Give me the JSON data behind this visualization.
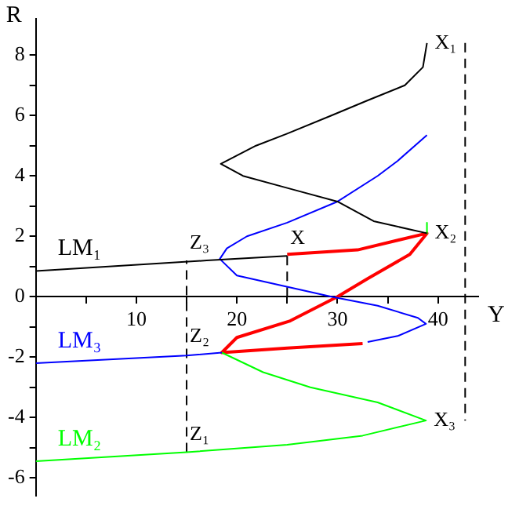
{
  "chart_data": {
    "type": "line",
    "xlabel": "Y",
    "ylabel": "R",
    "xlim": [
      0,
      44
    ],
    "ylim": [
      -6.6,
      9.2
    ],
    "xticks": [
      {
        "value": 5,
        "label": null
      },
      10,
      {
        "value": 15,
        "label": null
      },
      20,
      {
        "value": 25,
        "label": null
      },
      30,
      {
        "value": 35,
        "label": null
      },
      40
    ],
    "yticks": [
      -6,
      {
        "value": -5,
        "label": null
      },
      -4,
      {
        "value": -3,
        "label": null
      },
      -2,
      {
        "value": -1,
        "label": null
      },
      0,
      {
        "value": 1,
        "label": null
      },
      2,
      {
        "value": 3,
        "label": null
      },
      4,
      {
        "value": 5,
        "label": null
      },
      6,
      {
        "value": 7,
        "label": null
      },
      8
    ],
    "grid": false,
    "legend": false,
    "marker": "none",
    "series": [
      {
        "name": "LM₁",
        "color": "#000000",
        "x": [
          0,
          17,
          25,
          null,
          38.9,
          33.6,
          30,
          25,
          20.6,
          18.4,
          21.9,
          25,
          29.4,
          33,
          36.7,
          38.5,
          38.9
        ],
        "values": [
          0.85,
          1.2,
          1.35,
          null,
          2.1,
          2.5,
          3.15,
          3.6,
          4,
          4.4,
          5,
          5.4,
          6,
          6.5,
          7,
          7.6,
          8.4
        ]
      },
      {
        "name": "LM₃",
        "color": "#0000ff",
        "x": [
          38.9,
          36,
          34,
          30,
          25,
          21,
          19,
          18.3,
          20,
          24.7,
          29.4,
          34,
          38,
          38.8,
          36,
          33,
          null,
          18.5,
          15,
          0
        ],
        "values": [
          5.35,
          4.5,
          4,
          3.15,
          2.45,
          2,
          1.6,
          1.25,
          0.7,
          0.35,
          0,
          -0.3,
          -0.7,
          -0.9,
          -1.3,
          -1.5,
          null,
          -1.85,
          -1.95,
          -2.2
        ]
      },
      {
        "name": "LM₂",
        "color": "#00ff00",
        "x": [
          38.9,
          38.9,
          null,
          18.5,
          22.6,
          27.3,
          34,
          38.8,
          32.5,
          25,
          15,
          0
        ],
        "values": [
          2.45,
          2.1,
          null,
          -1.85,
          -2.5,
          -3,
          -3.5,
          -4.1,
          -4.6,
          -4.9,
          -5.15,
          -5.45
        ]
      },
      {
        "color": "#ff0000",
        "x": [
          25,
          32,
          38.9,
          37.2,
          33,
          30,
          25.3,
          20,
          18.5,
          25,
          32.5
        ],
        "values": [
          1.4,
          1.55,
          2.1,
          1.4,
          0.6,
          0,
          -0.8,
          -1.35,
          -1.85,
          -1.7,
          -1.55
        ]
      },
      {
        "color": "#000000",
        "line_style": "dashed",
        "x": [
          15,
          15
        ],
        "values": [
          -5.15,
          1.2
        ]
      },
      {
        "color": "#000000",
        "line_style": "dashed",
        "x": [
          42.7,
          42.7
        ],
        "values": [
          8.4,
          -4.1
        ]
      },
      {
        "color": "#000000",
        "line_style": "dashed",
        "x": [
          25,
          25
        ],
        "values": [
          1.35,
          0
        ]
      }
    ],
    "annotations": [
      {
        "text": "X₁",
        "x": 38.9,
        "y": 8.4
      },
      {
        "text": "X₂",
        "x": 38.9,
        "y": 2.1
      },
      {
        "text": "X₃",
        "x": 38.8,
        "y": -4.1
      },
      {
        "text": "X",
        "x": 25,
        "y": 1.35
      },
      {
        "text": "Z₁",
        "x": 15,
        "y": -5.15
      },
      {
        "text": "Z₂",
        "x": 15,
        "y": -1.9
      },
      {
        "text": "Z₃",
        "x": 15,
        "y": 1.2
      }
    ]
  }
}
